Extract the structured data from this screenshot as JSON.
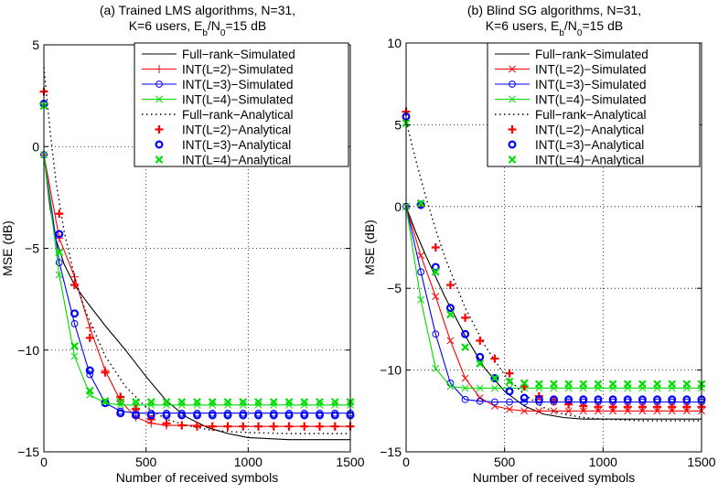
{
  "chart_data": [
    {
      "type": "line",
      "title_line1": "(a) Trained LMS algorithms, N=31,",
      "title_line2": "K=6 users, E",
      "title_sub_b": "b",
      "title_slash": "/N",
      "title_sub_0": "0",
      "title_end": "=15 dB",
      "xlabel": "Number of received symbols",
      "ylabel": "MSE (dB)",
      "xlim": [
        0,
        1500
      ],
      "ylim": [
        -15,
        5
      ],
      "xticks": [
        0,
        500,
        1000,
        1500
      ],
      "yticks": [
        -15,
        -10,
        -5,
        0,
        5
      ],
      "xtick_labels": [
        "0",
        "500",
        "1000",
        "1500"
      ],
      "ytick_labels": [
        "−15",
        "−10",
        "−5",
        "0",
        "5"
      ],
      "grid": true,
      "legend_position": "top-right",
      "series": [
        {
          "name": "Full−rank−Simulated",
          "color": "#000000",
          "style": "solid",
          "marker": "none",
          "x": [
            0,
            30,
            60,
            100,
            150,
            200,
            300,
            400,
            500,
            600,
            700,
            800,
            900,
            1000,
            1200,
            1500
          ],
          "y": [
            -0.4,
            -3.0,
            -4.6,
            -5.8,
            -6.8,
            -7.5,
            -8.8,
            -10.0,
            -11.3,
            -12.5,
            -13.3,
            -13.8,
            -14.1,
            -14.3,
            -14.4,
            -14.4
          ]
        },
        {
          "name": "INT(L=2)−Simulated",
          "color": "#ff0000",
          "style": "solid",
          "marker": "plus",
          "x": [
            0,
            75,
            150,
            225,
            300,
            375,
            450,
            525,
            600,
            675,
            750,
            825,
            900,
            975,
            1050,
            1125,
            1200,
            1275,
            1350,
            1425,
            1500
          ],
          "y": [
            -0.4,
            -4.5,
            -6.4,
            -8.9,
            -11.0,
            -12.5,
            -13.3,
            -13.6,
            -13.7,
            -13.7,
            -13.7,
            -13.75,
            -13.75,
            -13.75,
            -13.75,
            -13.75,
            -13.75,
            -13.75,
            -13.75,
            -13.75,
            -13.75
          ]
        },
        {
          "name": "INT(L=3)−Simulated",
          "color": "#0000ff",
          "style": "solid",
          "marker": "circle",
          "x": [
            0,
            75,
            150,
            225,
            300,
            375,
            450,
            525,
            600,
            675,
            750,
            825,
            900,
            975,
            1050,
            1125,
            1200,
            1275,
            1350,
            1425,
            1500
          ],
          "y": [
            -0.4,
            -5.7,
            -8.7,
            -11.2,
            -12.6,
            -13.0,
            -13.1,
            -13.1,
            -13.1,
            -13.1,
            -13.1,
            -13.1,
            -13.1,
            -13.1,
            -13.1,
            -13.1,
            -13.1,
            -13.1,
            -13.1,
            -13.1,
            -13.1
          ]
        },
        {
          "name": "INT(L=4)−Simulated",
          "color": "#00dd00",
          "style": "solid",
          "marker": "x",
          "x": [
            0,
            75,
            150,
            225,
            300,
            375,
            450,
            525,
            600,
            675,
            750,
            825,
            900,
            975,
            1050,
            1125,
            1200,
            1275,
            1350,
            1425,
            1500
          ],
          "y": [
            -0.4,
            -6.3,
            -10.3,
            -12.2,
            -12.6,
            -12.7,
            -12.7,
            -12.7,
            -12.7,
            -12.7,
            -12.7,
            -12.7,
            -12.7,
            -12.7,
            -12.7,
            -12.7,
            -12.7,
            -12.7,
            -12.7,
            -12.7,
            -12.7
          ]
        },
        {
          "name": "Full−rank−Analytical",
          "color": "#000000",
          "style": "dotted",
          "marker": "none",
          "x": [
            0,
            30,
            60,
            100,
            150,
            200,
            300,
            400,
            500,
            600,
            700,
            800,
            900,
            1000,
            1200,
            1500
          ],
          "y": [
            3.9,
            0.8,
            -1.8,
            -4.2,
            -6.4,
            -8.0,
            -10.3,
            -11.8,
            -12.8,
            -13.4,
            -13.7,
            -13.9,
            -14.0,
            -14.05,
            -14.1,
            -14.1
          ]
        },
        {
          "name": "INT(L=2)−Analytical",
          "color": "#ff0000",
          "style": "none",
          "marker": "plus-bold",
          "x": [
            0,
            75,
            150,
            225,
            300,
            375,
            450,
            525,
            600,
            675,
            750,
            825,
            900,
            975,
            1050,
            1125,
            1200,
            1275,
            1350,
            1425,
            1500
          ],
          "y": [
            2.7,
            -3.3,
            -6.8,
            -9.4,
            -11.1,
            -12.3,
            -12.9,
            -13.4,
            -13.6,
            -13.7,
            -13.75,
            -13.75,
            -13.75,
            -13.75,
            -13.75,
            -13.75,
            -13.75,
            -13.75,
            -13.75,
            -13.75,
            -13.75
          ]
        },
        {
          "name": "INT(L=3)−Analytical",
          "color": "#0000ff",
          "style": "none",
          "marker": "circle-bold",
          "x": [
            0,
            75,
            150,
            225,
            300,
            375,
            450,
            525,
            600,
            675,
            750,
            825,
            900,
            975,
            1050,
            1125,
            1200,
            1275,
            1350,
            1425,
            1500
          ],
          "y": [
            2.1,
            -4.3,
            -8.2,
            -11.0,
            -12.6,
            -13.1,
            -13.2,
            -13.2,
            -13.2,
            -13.2,
            -13.2,
            -13.2,
            -13.2,
            -13.2,
            -13.2,
            -13.2,
            -13.2,
            -13.2,
            -13.2,
            -13.2,
            -13.2
          ]
        },
        {
          "name": "INT(L=4)−Analytical",
          "color": "#00dd00",
          "style": "none",
          "marker": "x-bold",
          "x": [
            0,
            75,
            150,
            225,
            300,
            375,
            450,
            525,
            600,
            675,
            750,
            825,
            900,
            975,
            1050,
            1125,
            1200,
            1275,
            1350,
            1425,
            1500
          ],
          "y": [
            2.0,
            -5.2,
            -9.8,
            -12.0,
            -12.5,
            -12.55,
            -12.55,
            -12.55,
            -12.55,
            -12.55,
            -12.55,
            -12.55,
            -12.55,
            -12.55,
            -12.55,
            -12.55,
            -12.55,
            -12.55,
            -12.55,
            -12.55,
            -12.55
          ]
        }
      ]
    },
    {
      "type": "line",
      "title_line1": "(b) Blind SG algorithms, N=31,",
      "title_line2": "K=6 users, E",
      "title_sub_b": "b",
      "title_slash": "/N",
      "title_sub_0": "0",
      "title_end": "=15 dB",
      "xlabel": "Number of received symbols",
      "ylabel": "MSE (dB)",
      "xlim": [
        0,
        1500
      ],
      "ylim": [
        -15,
        10
      ],
      "xticks": [
        0,
        500,
        1000,
        1500
      ],
      "yticks": [
        -15,
        -10,
        -5,
        0,
        5,
        10
      ],
      "xtick_labels": [
        "0",
        "500",
        "1000",
        "1500"
      ],
      "ytick_labels": [
        "−15",
        "−10",
        "−5",
        "0",
        "5",
        "10"
      ],
      "grid": true,
      "legend_position": "top-right",
      "series": [
        {
          "name": "Full−rank−Simulated",
          "color": "#000000",
          "style": "solid",
          "marker": "none",
          "x": [
            0,
            50,
            100,
            150,
            200,
            300,
            400,
            500,
            600,
            700,
            800,
            900,
            1000,
            1200,
            1500
          ],
          "y": [
            0.0,
            -1.6,
            -3.0,
            -4.3,
            -5.6,
            -7.9,
            -9.9,
            -11.3,
            -12.2,
            -12.7,
            -12.9,
            -13.0,
            -13.0,
            -13.0,
            -13.0
          ]
        },
        {
          "name": "INT(L=2)−Simulated",
          "color": "#ff0000",
          "style": "solid",
          "marker": "x",
          "x": [
            0,
            75,
            150,
            225,
            300,
            375,
            450,
            525,
            600,
            675,
            750,
            825,
            900,
            975,
            1050,
            1125,
            1200,
            1275,
            1350,
            1425,
            1500
          ],
          "y": [
            0.0,
            -3.0,
            -5.5,
            -8.2,
            -10.5,
            -11.7,
            -12.2,
            -12.4,
            -12.5,
            -12.5,
            -12.5,
            -12.5,
            -12.5,
            -12.5,
            -12.5,
            -12.5,
            -12.5,
            -12.5,
            -12.5,
            -12.5,
            -12.5
          ]
        },
        {
          "name": "INT(L=3)−Simulated",
          "color": "#0000ff",
          "style": "solid",
          "marker": "circle",
          "x": [
            0,
            75,
            150,
            225,
            300,
            375,
            450,
            525,
            600,
            675,
            750,
            825,
            900,
            975,
            1050,
            1125,
            1200,
            1275,
            1350,
            1425,
            1500
          ],
          "y": [
            0.0,
            -4.0,
            -7.8,
            -10.8,
            -11.8,
            -11.9,
            -11.95,
            -11.95,
            -11.95,
            -11.95,
            -11.95,
            -11.95,
            -11.95,
            -11.95,
            -11.95,
            -11.95,
            -11.95,
            -11.95,
            -11.95,
            -11.95,
            -11.95
          ]
        },
        {
          "name": "INT(L=4)−Simulated",
          "color": "#00dd00",
          "style": "solid",
          "marker": "x",
          "x": [
            0,
            75,
            150,
            225,
            300,
            375,
            450,
            525,
            600,
            675,
            750,
            825,
            900,
            975,
            1050,
            1125,
            1200,
            1275,
            1350,
            1425,
            1500
          ],
          "y": [
            0.0,
            -5.7,
            -9.9,
            -11.0,
            -11.1,
            -11.1,
            -11.1,
            -11.1,
            -11.1,
            -11.1,
            -11.1,
            -11.1,
            -11.1,
            -11.1,
            -11.1,
            -11.1,
            -11.1,
            -11.1,
            -11.1,
            -11.1,
            -11.1
          ]
        },
        {
          "name": "Full−rank−Analytical",
          "color": "#000000",
          "style": "dotted",
          "marker": "none",
          "x": [
            0,
            50,
            100,
            150,
            200,
            300,
            400,
            500,
            600,
            700,
            800,
            900,
            1000,
            1200,
            1500
          ],
          "y": [
            5.2,
            2.8,
            0.6,
            -1.4,
            -3.2,
            -6.2,
            -8.5,
            -10.3,
            -11.5,
            -12.3,
            -12.7,
            -12.9,
            -13.0,
            -13.1,
            -13.1
          ]
        },
        {
          "name": "INT(L=2)−Analytical",
          "color": "#ff0000",
          "style": "none",
          "marker": "plus-bold",
          "x": [
            0,
            75,
            150,
            225,
            300,
            375,
            450,
            525,
            600,
            675,
            750,
            825,
            900,
            975,
            1050,
            1125,
            1200,
            1275,
            1350,
            1425,
            1500
          ],
          "y": [
            5.8,
            0.1,
            -2.5,
            -4.8,
            -6.8,
            -8.2,
            -9.3,
            -10.2,
            -11.0,
            -11.6,
            -11.9,
            -12.1,
            -12.2,
            -12.25,
            -12.25,
            -12.25,
            -12.25,
            -12.25,
            -12.25,
            -12.25,
            -12.25
          ]
        },
        {
          "name": "INT(L=3)−Analytical",
          "color": "#0000ff",
          "style": "none",
          "marker": "circle-bold",
          "x": [
            0,
            75,
            150,
            225,
            300,
            375,
            450,
            525,
            600,
            675,
            750,
            825,
            900,
            975,
            1050,
            1125,
            1200,
            1275,
            1350,
            1425,
            1500
          ],
          "y": [
            5.5,
            0.1,
            -3.7,
            -6.2,
            -7.8,
            -9.2,
            -10.5,
            -11.3,
            -11.7,
            -11.8,
            -11.8,
            -11.8,
            -11.8,
            -11.8,
            -11.8,
            -11.8,
            -11.8,
            -11.8,
            -11.8,
            -11.8,
            -11.8
          ]
        },
        {
          "name": "INT(L=4)−Analytical",
          "color": "#00dd00",
          "style": "none",
          "marker": "x-bold",
          "x": [
            0,
            75,
            150,
            225,
            300,
            375,
            450,
            525,
            600,
            675,
            750,
            825,
            900,
            975,
            1050,
            1125,
            1200,
            1275,
            1350,
            1425,
            1500
          ],
          "y": [
            5.1,
            0.2,
            -4.0,
            -6.6,
            -8.6,
            -9.6,
            -10.5,
            -10.7,
            -10.8,
            -10.85,
            -10.85,
            -10.85,
            -10.85,
            -10.85,
            -10.85,
            -10.85,
            -10.85,
            -10.85,
            -10.85,
            -10.85,
            -10.85
          ]
        }
      ]
    }
  ]
}
